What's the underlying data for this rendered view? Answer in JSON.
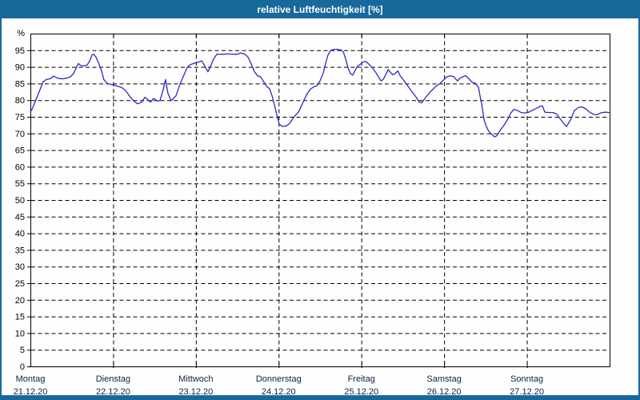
{
  "window": {
    "title": "relative Luftfeuchtigkeit [%]"
  },
  "colors": {
    "titlebar_bg": "#17689B",
    "frame_border": "#17689B",
    "panel_bg": "#fefefe",
    "line": "#2a2ac4",
    "grid": "#000000",
    "axis": "#000000",
    "y_label_text": "#000000",
    "x_label_text": "#0c2340",
    "title_text": "#ffffff"
  },
  "chart_data": {
    "type": "line",
    "title": "relative Luftfeuchtigkeit [%]",
    "ylabel": "%",
    "ylim": [
      0,
      100
    ],
    "xlim_hours": [
      0,
      168
    ],
    "grid": "dashed",
    "legend": "none",
    "y_axis": {
      "unit_label": "%",
      "ticks": [
        0,
        5,
        10,
        15,
        20,
        25,
        30,
        35,
        40,
        45,
        50,
        55,
        60,
        65,
        70,
        75,
        80,
        85,
        90,
        95
      ]
    },
    "x_axis": {
      "days": [
        {
          "weekday": "Montag",
          "date": "21.12.20"
        },
        {
          "weekday": "Dienstag",
          "date": "22.12.20"
        },
        {
          "weekday": "Mittwoch",
          "date": "23.12.20"
        },
        {
          "weekday": "Donnerstag",
          "date": "24.12.20"
        },
        {
          "weekday": "Freitag",
          "date": "25.12.20"
        },
        {
          "weekday": "Samstag",
          "date": "26.12.20"
        },
        {
          "weekday": "Sonntag",
          "date": "27.12.20"
        }
      ]
    },
    "series": [
      {
        "color": "#2a2ac4",
        "points": [
          [
            0,
            76.5
          ],
          [
            0.5,
            77.3
          ],
          [
            1.6,
            80.1
          ],
          [
            2.8,
            83.2
          ],
          [
            3.7,
            85.5
          ],
          [
            4.6,
            86.2
          ],
          [
            5.8,
            86.5
          ],
          [
            6.7,
            87.2
          ],
          [
            7.9,
            86.6
          ],
          [
            9.3,
            86.4
          ],
          [
            10.4,
            86.6
          ],
          [
            11.6,
            87
          ],
          [
            12.5,
            88
          ],
          [
            13.2,
            89.5
          ],
          [
            13.9,
            91
          ],
          [
            14.6,
            90.4
          ],
          [
            15.6,
            90.3
          ],
          [
            16.5,
            90.6
          ],
          [
            17.2,
            91.8
          ],
          [
            17.9,
            93.6
          ],
          [
            18.3,
            93.8
          ],
          [
            19,
            93
          ],
          [
            19.7,
            91.4
          ],
          [
            20.7,
            88.6
          ],
          [
            21.3,
            86.2
          ],
          [
            22.3,
            85
          ],
          [
            23.2,
            84.8
          ],
          [
            24.1,
            84.5
          ],
          [
            25.3,
            84.2
          ],
          [
            26.5,
            83.8
          ],
          [
            27.6,
            82.9
          ],
          [
            28.8,
            81.2
          ],
          [
            29.9,
            79.8
          ],
          [
            31.1,
            78.9
          ],
          [
            32.3,
            79.4
          ],
          [
            33.2,
            80.9
          ],
          [
            34.1,
            80.1
          ],
          [
            34.8,
            79.4
          ],
          [
            35.7,
            80.5
          ],
          [
            36.9,
            79.7
          ],
          [
            37.6,
            79.9
          ],
          [
            38.5,
            83
          ],
          [
            39.2,
            86.2
          ],
          [
            39.9,
            82.1
          ],
          [
            40.8,
            79.8
          ],
          [
            42.2,
            81.3
          ],
          [
            43.2,
            84.2
          ],
          [
            44.1,
            86.6
          ],
          [
            44.8,
            88.2
          ],
          [
            45.5,
            89.8
          ],
          [
            46.4,
            90.7
          ],
          [
            47.6,
            91.1
          ],
          [
            48.7,
            91.4
          ],
          [
            49.7,
            91.8
          ],
          [
            50.6,
            90.2
          ],
          [
            51.5,
            88.5
          ],
          [
            52.4,
            90.5
          ],
          [
            53.1,
            92.3
          ],
          [
            54.1,
            93.8
          ],
          [
            55.7,
            93.8
          ],
          [
            57.3,
            93.9
          ],
          [
            58.9,
            93.8
          ],
          [
            60.1,
            93.8
          ],
          [
            61,
            94.2
          ],
          [
            62.2,
            93.8
          ],
          [
            63.1,
            93
          ],
          [
            64,
            91
          ],
          [
            65,
            88.5
          ],
          [
            65.9,
            87.3
          ],
          [
            66.8,
            87
          ],
          [
            67.5,
            85.8
          ],
          [
            68.5,
            84.2
          ],
          [
            69.4,
            83.4
          ],
          [
            70.1,
            81.3
          ],
          [
            70.8,
            78.5
          ],
          [
            71.5,
            75.5
          ],
          [
            72.2,
            72.8
          ],
          [
            73.1,
            72.1
          ],
          [
            74.3,
            72.3
          ],
          [
            75.2,
            73
          ],
          [
            76.4,
            74.9
          ],
          [
            77.8,
            76.5
          ],
          [
            79.4,
            80.1
          ],
          [
            80.3,
            82
          ],
          [
            81.2,
            83.3
          ],
          [
            82.2,
            84
          ],
          [
            83.1,
            84.3
          ],
          [
            84,
            85.8
          ],
          [
            84.9,
            88
          ],
          [
            85.6,
            91
          ],
          [
            86.3,
            93.5
          ],
          [
            87,
            94.8
          ],
          [
            87.7,
            95.2
          ],
          [
            88.9,
            95.3
          ],
          [
            90.1,
            95.1
          ],
          [
            90.8,
            94.4
          ],
          [
            91.4,
            92.5
          ],
          [
            92.1,
            89.8
          ],
          [
            92.8,
            88
          ],
          [
            93.5,
            87.5
          ],
          [
            94.2,
            89
          ],
          [
            94.9,
            90.3
          ],
          [
            95.6,
            90.7
          ],
          [
            96.3,
            91.4
          ],
          [
            97.3,
            91.6
          ],
          [
            98.2,
            90.8
          ],
          [
            99.1,
            89.8
          ],
          [
            100,
            88.6
          ],
          [
            100.7,
            87.4
          ],
          [
            101.7,
            85.8
          ],
          [
            102.4,
            86.3
          ],
          [
            103.1,
            87.8
          ],
          [
            103.8,
            89.2
          ],
          [
            104.4,
            88.4
          ],
          [
            105.1,
            87.6
          ],
          [
            105.8,
            88
          ],
          [
            106.6,
            88.8
          ],
          [
            107.2,
            87.4
          ],
          [
            108.4,
            85.8
          ],
          [
            109.5,
            84.2
          ],
          [
            110.7,
            82.5
          ],
          [
            111.9,
            80.9
          ],
          [
            112.8,
            79.4
          ],
          [
            113.5,
            79.2
          ],
          [
            114.7,
            80.9
          ],
          [
            116,
            82.5
          ],
          [
            117.7,
            84.2
          ],
          [
            118.8,
            85
          ],
          [
            120,
            86.2
          ],
          [
            120.7,
            87
          ],
          [
            121.8,
            87.3
          ],
          [
            122.8,
            87.1
          ],
          [
            123.5,
            86.2
          ],
          [
            123.9,
            85.8
          ],
          [
            124.6,
            86.6
          ],
          [
            126.2,
            87.4
          ],
          [
            127.4,
            86.2
          ],
          [
            128.1,
            85.4
          ],
          [
            129,
            85.1
          ],
          [
            130,
            83.8
          ],
          [
            130.4,
            81.3
          ],
          [
            130.9,
            78.9
          ],
          [
            131.6,
            74.1
          ],
          [
            132.1,
            72.5
          ],
          [
            132.8,
            70.9
          ],
          [
            133.5,
            70
          ],
          [
            134.6,
            69
          ],
          [
            135.3,
            69.3
          ],
          [
            136.2,
            70.9
          ],
          [
            137.4,
            72.5
          ],
          [
            138.6,
            74.5
          ],
          [
            139.3,
            76.1
          ],
          [
            140.2,
            77.2
          ],
          [
            141.3,
            76.9
          ],
          [
            142.3,
            76.3
          ],
          [
            143.2,
            76.2
          ],
          [
            144.4,
            76.3
          ],
          [
            145.5,
            76.9
          ],
          [
            146.7,
            77.5
          ],
          [
            147.8,
            78.1
          ],
          [
            148.5,
            78.3
          ],
          [
            149.2,
            76.4
          ],
          [
            150.4,
            76.3
          ],
          [
            151.6,
            76.3
          ],
          [
            152.7,
            75.8
          ],
          [
            153.6,
            74.5
          ],
          [
            154.6,
            73.1
          ],
          [
            155.5,
            72.1
          ],
          [
            156.7,
            74.1
          ],
          [
            157.8,
            76.9
          ],
          [
            159,
            77.8
          ],
          [
            159.9,
            78
          ],
          [
            161.1,
            77.4
          ],
          [
            162.2,
            76.4
          ],
          [
            163.4,
            75.7
          ],
          [
            164.3,
            75.6
          ],
          [
            165.5,
            76.2
          ],
          [
            166.6,
            76.4
          ],
          [
            168,
            76.3
          ]
        ]
      }
    ]
  }
}
